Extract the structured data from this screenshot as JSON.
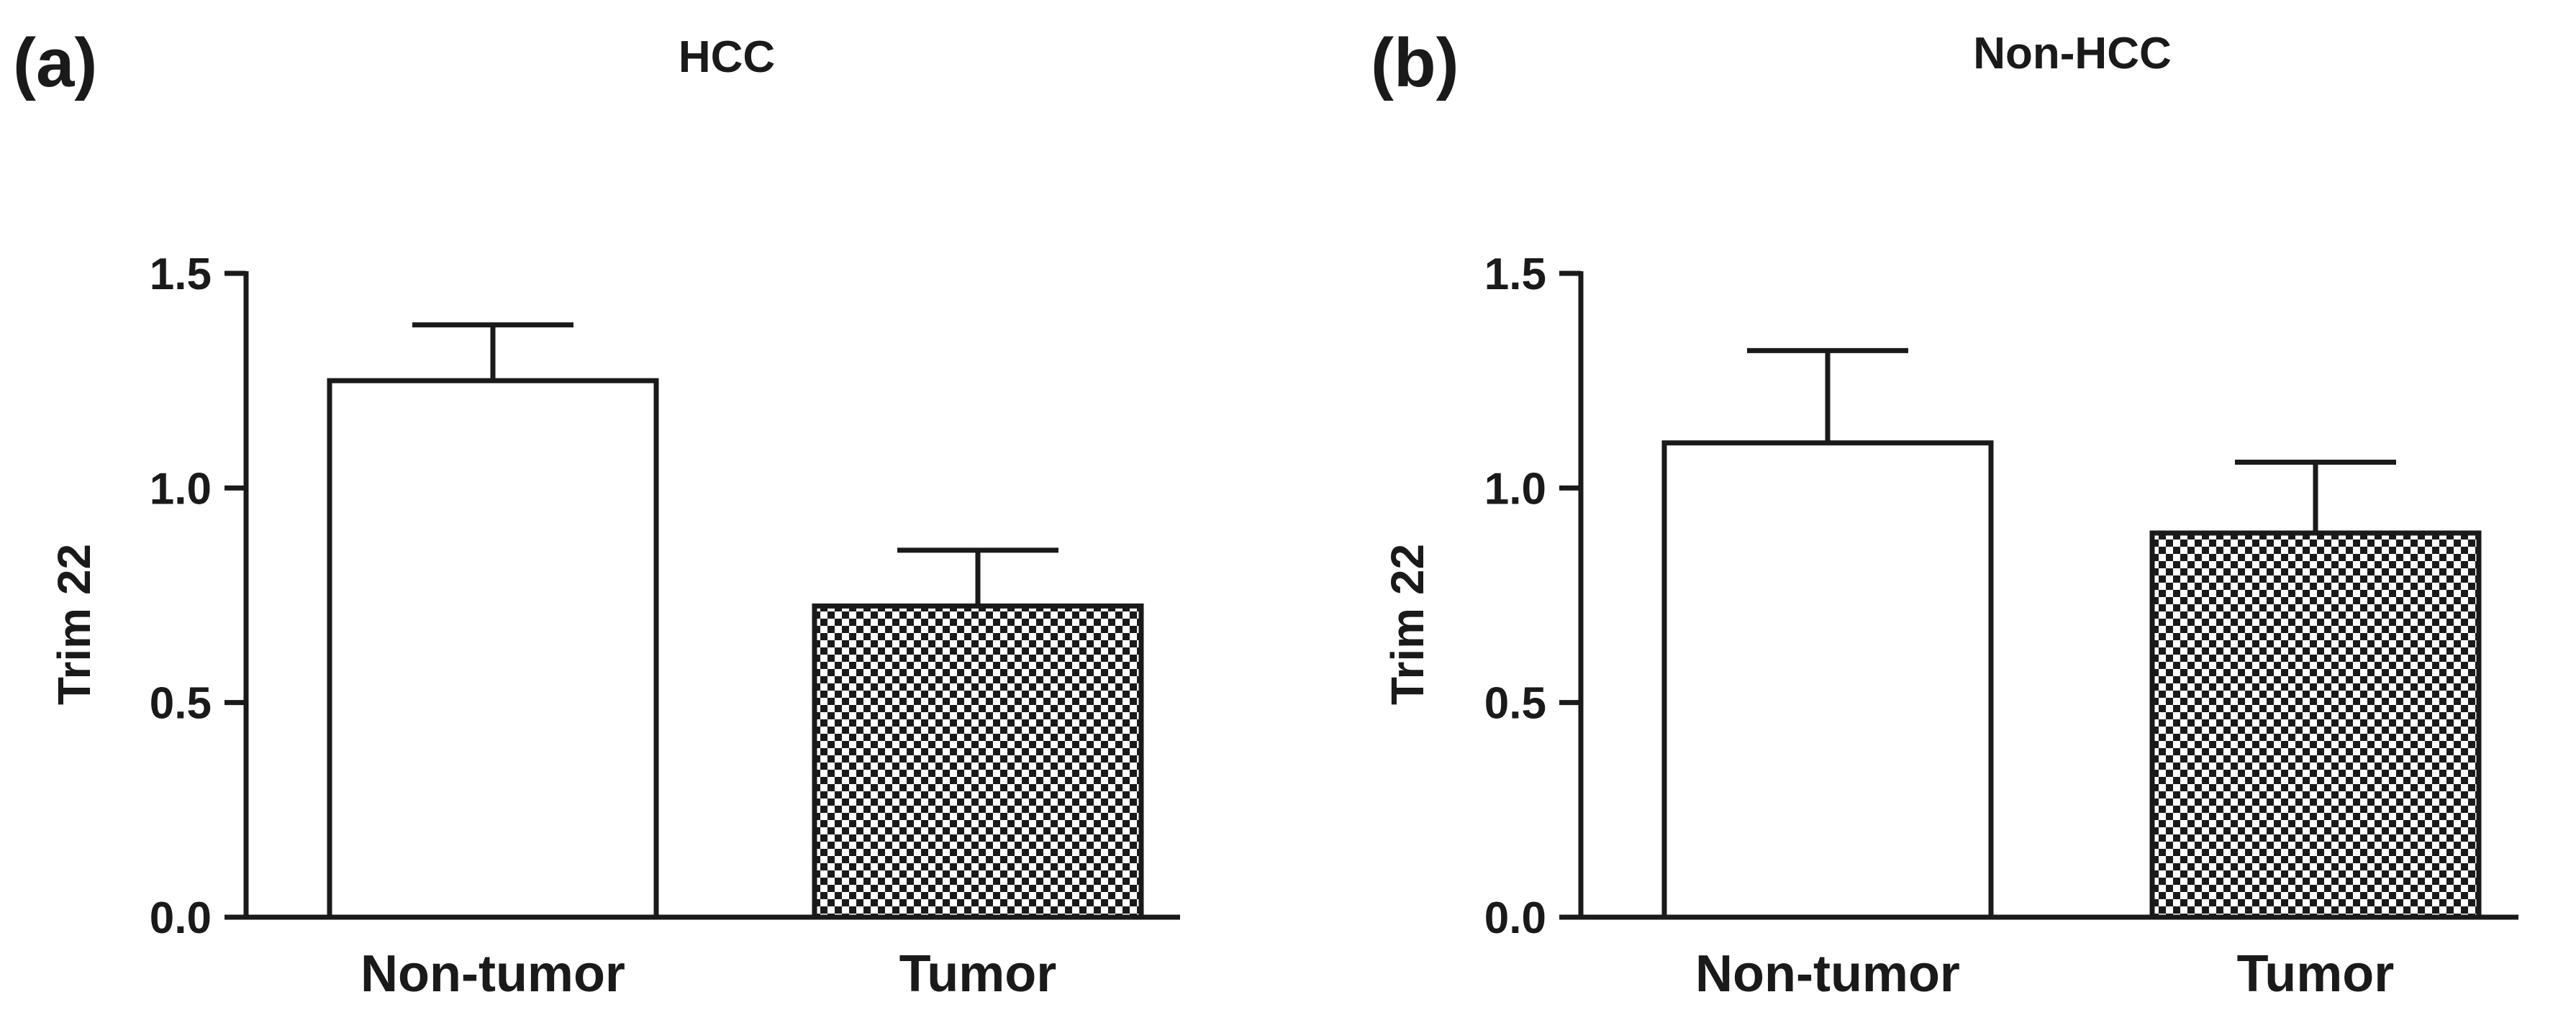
{
  "chart_data": [
    {
      "type": "bar",
      "panel_label": "(a)",
      "title": "HCC",
      "xlabel": "",
      "ylabel": "Trim 22",
      "ylim": [
        0,
        1.5
      ],
      "yticks": [
        0,
        0.5,
        1.0,
        1.5
      ],
      "ytick_labels": [
        "0.0",
        "0.5",
        "1.0",
        "1.5"
      ],
      "grid": false,
      "legend": "none",
      "categories": [
        "Non-tumor",
        "Tumor"
      ],
      "values": [
        1.25,
        0.725
      ],
      "errors": [
        0.13,
        0.13
      ],
      "fills": [
        "white",
        "checkered"
      ]
    },
    {
      "type": "bar",
      "panel_label": "(b)",
      "title": "Non-HCC",
      "xlabel": "",
      "ylabel": "Trim 22",
      "ylim": [
        0,
        1.5
      ],
      "yticks": [
        0,
        0.5,
        1.0,
        1.5
      ],
      "ytick_labels": [
        "0.0",
        "0.5",
        "1.0",
        "1.5"
      ],
      "grid": false,
      "legend": "none",
      "categories": [
        "Non-tumor",
        "Tumor"
      ],
      "values": [
        1.105,
        0.895
      ],
      "errors": [
        0.215,
        0.165
      ],
      "fills": [
        "white",
        "checkered"
      ]
    }
  ]
}
